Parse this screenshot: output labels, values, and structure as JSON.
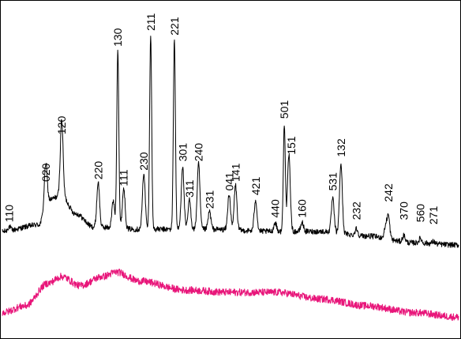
{
  "chart_data": {
    "type": "line",
    "title": "",
    "xlabel": "",
    "ylabel": "",
    "x_unit": "2θ (degrees, relative)",
    "xlim": [
      0,
      100
    ],
    "ylim": [
      0,
      100
    ],
    "grid": false,
    "legend": "none",
    "colors": {
      "frame": "#000000",
      "pattern": "#000000",
      "reference": "#e8167a"
    },
    "peak_labels": [
      {
        "hkl": "110",
        "x": 1.5,
        "y": 2
      },
      {
        "hkl": "020",
        "x": 9.5,
        "y": 20
      },
      {
        "hkl": "120",
        "x": 13.0,
        "y": 41
      },
      {
        "hkl": "220",
        "x": 21.0,
        "y": 21
      },
      {
        "hkl": "130",
        "x": 25.3,
        "y": 80
      },
      {
        "hkl": "111",
        "x": 26.6,
        "y": 18
      },
      {
        "hkl": "230",
        "x": 31.0,
        "y": 25
      },
      {
        "hkl": "211",
        "x": 32.5,
        "y": 87
      },
      {
        "hkl": "221",
        "x": 37.7,
        "y": 85
      },
      {
        "hkl": "301",
        "x": 39.5,
        "y": 29
      },
      {
        "hkl": "311",
        "x": 41.0,
        "y": 13
      },
      {
        "hkl": "240",
        "x": 43.0,
        "y": 29
      },
      {
        "hkl": "231",
        "x": 45.4,
        "y": 8
      },
      {
        "hkl": "041",
        "x": 49.7,
        "y": 16
      },
      {
        "hkl": "141",
        "x": 51.1,
        "y": 20
      },
      {
        "hkl": "421",
        "x": 55.5,
        "y": 14
      },
      {
        "hkl": "440",
        "x": 59.8,
        "y": 4
      },
      {
        "hkl": "501",
        "x": 61.8,
        "y": 48
      },
      {
        "hkl": "151",
        "x": 63.3,
        "y": 32
      },
      {
        "hkl": "160",
        "x": 65.7,
        "y": 4
      },
      {
        "hkl": "531",
        "x": 72.4,
        "y": 16
      },
      {
        "hkl": "132",
        "x": 74.2,
        "y": 31
      },
      {
        "hkl": "232",
        "x": 77.6,
        "y": 3
      },
      {
        "hkl": "242",
        "x": 84.6,
        "y": 11
      },
      {
        "hkl": "370",
        "x": 88.0,
        "y": 3
      },
      {
        "hkl": "560",
        "x": 91.6,
        "y": 2
      },
      {
        "hkl": "271",
        "x": 94.5,
        "y": 1
      }
    ],
    "series": [
      {
        "role": "crystalline-pattern",
        "color": "#000000",
        "baseline": [
          [
            0,
            0
          ],
          [
            8,
            3
          ],
          [
            10,
            14
          ],
          [
            13,
            16
          ],
          [
            16,
            8
          ],
          [
            20,
            2
          ],
          [
            30,
            1
          ],
          [
            45,
            1
          ],
          [
            60,
            0
          ],
          [
            70,
            0
          ],
          [
            80,
            -2
          ],
          [
            90,
            -5
          ],
          [
            100,
            -6
          ]
        ],
        "peaks": [
          {
            "x": 1.5,
            "h": 2
          },
          {
            "x": 9.5,
            "h": 18
          },
          {
            "x": 13.0,
            "h": 34
          },
          {
            "x": 21.0,
            "h": 20
          },
          {
            "x": 24.3,
            "h": 12
          },
          {
            "x": 25.3,
            "h": 80
          },
          {
            "x": 26.6,
            "h": 18
          },
          {
            "x": 31.0,
            "h": 25
          },
          {
            "x": 32.5,
            "h": 87
          },
          {
            "x": 37.7,
            "h": 85
          },
          {
            "x": 39.5,
            "h": 28
          },
          {
            "x": 41.0,
            "h": 13
          },
          {
            "x": 43.0,
            "h": 29
          },
          {
            "x": 45.4,
            "h": 8
          },
          {
            "x": 49.7,
            "h": 16
          },
          {
            "x": 51.1,
            "h": 20
          },
          {
            "x": 55.5,
            "h": 14
          },
          {
            "x": 59.8,
            "h": 4
          },
          {
            "x": 61.8,
            "h": 48
          },
          {
            "x": 62.8,
            "h": 34
          },
          {
            "x": 65.7,
            "h": 4
          },
          {
            "x": 72.4,
            "h": 15
          },
          {
            "x": 74.2,
            "h": 31
          },
          {
            "x": 77.6,
            "h": 3
          },
          {
            "x": 84.0,
            "h": 5
          },
          {
            "x": 84.6,
            "h": 10
          },
          {
            "x": 88.0,
            "h": 3
          },
          {
            "x": 91.6,
            "h": 2
          },
          {
            "x": 94.5,
            "h": 1
          }
        ]
      },
      {
        "role": "amorphous-reference",
        "color": "#e8167a",
        "baseline": [
          [
            0,
            -36
          ],
          [
            5,
            -33
          ],
          [
            10,
            -23
          ],
          [
            13,
            -20
          ],
          [
            17,
            -24
          ],
          [
            22,
            -20
          ],
          [
            25,
            -18
          ],
          [
            30,
            -22
          ],
          [
            40,
            -26
          ],
          [
            50,
            -27
          ],
          [
            60,
            -27
          ],
          [
            70,
            -30
          ],
          [
            80,
            -33
          ],
          [
            90,
            -36
          ],
          [
            100,
            -38
          ]
        ]
      }
    ]
  }
}
